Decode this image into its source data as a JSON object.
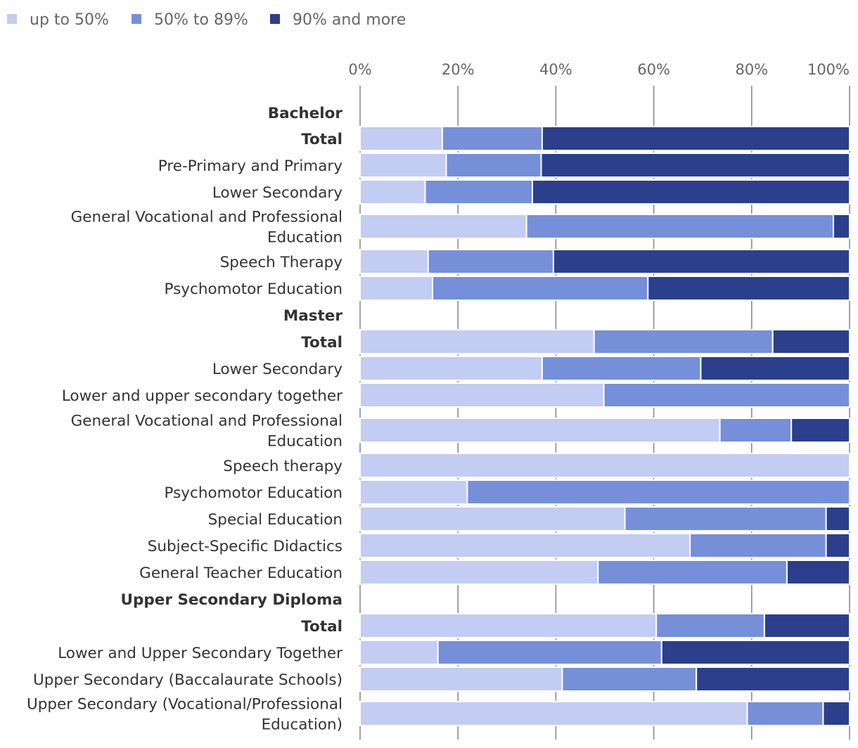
{
  "chart_data": {
    "type": "bar",
    "orientation": "horizontal",
    "stacked": true,
    "title": "",
    "xlabel": "",
    "ylabel": "",
    "xlim": [
      0,
      100
    ],
    "x_ticks": [
      "0%",
      "20%",
      "40%",
      "60%",
      "80%",
      "100%"
    ],
    "legend_position": "top-left",
    "grid": true,
    "series": [
      {
        "name": "up to 50%",
        "color": "#c3ccf2"
      },
      {
        "name": "50% to 89%",
        "color": "#758fd9"
      },
      {
        "name": "90% and more",
        "color": "#2b3f8c"
      }
    ],
    "rows": [
      {
        "label": "Bachelor",
        "header": true
      },
      {
        "label": "Total",
        "bold": true,
        "values": [
          16.8,
          20.4,
          62.8
        ]
      },
      {
        "label": "Pre-Primary and Primary",
        "values": [
          17.6,
          19.4,
          63.0
        ]
      },
      {
        "label": "Lower Secondary",
        "values": [
          13.3,
          21.9,
          64.8
        ]
      },
      {
        "label": "General Vocational and Professional Education",
        "lines": [
          "General Vocational and Professional",
          "Education"
        ],
        "values": [
          34.0,
          62.7,
          3.3
        ]
      },
      {
        "label": "Speech Therapy",
        "values": [
          13.9,
          25.6,
          60.5
        ]
      },
      {
        "label": "Psychomotor Education",
        "values": [
          14.8,
          44.0,
          41.2
        ]
      },
      {
        "label": "Master",
        "header": true
      },
      {
        "label": "Total",
        "bold": true,
        "values": [
          47.8,
          36.5,
          15.7
        ]
      },
      {
        "label": "Lower Secondary",
        "values": [
          37.2,
          32.4,
          30.4
        ]
      },
      {
        "label": "Lower and upper secondary together",
        "values": [
          49.8,
          50.2,
          0
        ]
      },
      {
        "label": "General Vocational and Professional Education",
        "lines": [
          "General Vocational and Professional",
          "Education"
        ],
        "values": [
          73.5,
          14.6,
          11.9
        ]
      },
      {
        "label": "Speech therapy",
        "values": [
          100,
          0,
          0
        ]
      },
      {
        "label": "Psychomotor Education",
        "values": [
          21.9,
          78.1,
          0
        ]
      },
      {
        "label": "Special Education",
        "values": [
          54.1,
          41.1,
          4.8
        ]
      },
      {
        "label": "Subject-Specific Didactics",
        "values": [
          67.4,
          27.8,
          4.8
        ]
      },
      {
        "label": "General Teacher Education",
        "values": [
          48.6,
          38.6,
          12.8
        ]
      },
      {
        "label": "Upper Secondary Diploma",
        "header": true
      },
      {
        "label": "Total",
        "bold": true,
        "values": [
          60.5,
          22.1,
          17.4
        ]
      },
      {
        "label": "Lower and Upper Secondary Together",
        "values": [
          15.9,
          45.7,
          38.4
        ]
      },
      {
        "label": "Upper Secondary (Baccalaurate Schools)",
        "values": [
          41.3,
          27.4,
          31.3
        ]
      },
      {
        "label": "Upper Secondary (Vocational/Professional Education)",
        "lines": [
          "Upper Secondary (Vocational/Professional",
          "Education)"
        ],
        "values": [
          79.1,
          15.5,
          5.4
        ]
      }
    ]
  }
}
